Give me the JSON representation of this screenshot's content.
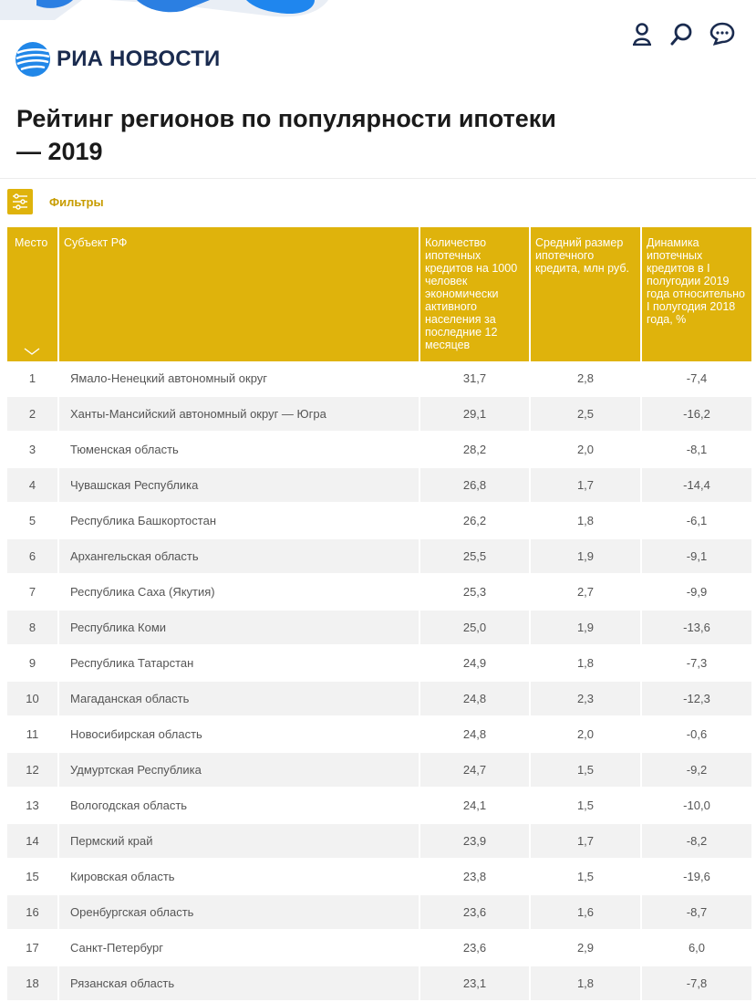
{
  "header": {
    "logo_text": "РИА НОВОСТИ",
    "icons": [
      "user-icon",
      "search-icon",
      "chat-icon"
    ],
    "brand_color": "#1a2b4f",
    "accent_color": "#2187e8"
  },
  "title": "Рейтинг регионов по популярности ипотеки — 2019",
  "filters": {
    "label": "Фильтры",
    "color": "#dfb30c"
  },
  "table": {
    "columns": [
      "Место",
      "Субъект РФ",
      "Количество ипотечных кредитов на 1000 человек экономически активного населения за последние 12 месяцев",
      "Средний размер ипотечного кредита, млн руб.",
      "Динамика ипотечных кредитов в I полугодии 2019 года относительно I полугодия 2018 года, %"
    ],
    "header_color": "#dfb30c",
    "rows": [
      [
        "1",
        "Ямало-Ненецкий автономный округ",
        "31,7",
        "2,8",
        "-7,4"
      ],
      [
        "2",
        "Ханты-Мансийский автономный округ — Югра",
        "29,1",
        "2,5",
        "-16,2"
      ],
      [
        "3",
        "Тюменская область",
        "28,2",
        "2,0",
        "-8,1"
      ],
      [
        "4",
        "Чувашская Республика",
        "26,8",
        "1,7",
        "-14,4"
      ],
      [
        "5",
        "Республика Башкортостан",
        "26,2",
        "1,8",
        "-6,1"
      ],
      [
        "6",
        "Архангельская область",
        "25,5",
        "1,9",
        "-9,1"
      ],
      [
        "7",
        "Республика Саха (Якутия)",
        "25,3",
        "2,7",
        "-9,9"
      ],
      [
        "8",
        "Республика Коми",
        "25,0",
        "1,9",
        "-13,6"
      ],
      [
        "9",
        "Республика Татарстан",
        "24,9",
        "1,8",
        "-7,3"
      ],
      [
        "10",
        "Магаданская область",
        "24,8",
        "2,3",
        "-12,3"
      ],
      [
        "11",
        "Новосибирская область",
        "24,8",
        "2,0",
        "-0,6"
      ],
      [
        "12",
        "Удмуртская Республика",
        "24,7",
        "1,5",
        "-9,2"
      ],
      [
        "13",
        "Вологодская область",
        "24,1",
        "1,5",
        "-10,0"
      ],
      [
        "14",
        "Пермский край",
        "23,9",
        "1,7",
        "-8,2"
      ],
      [
        "15",
        "Кировская область",
        "23,8",
        "1,5",
        "-19,6"
      ],
      [
        "16",
        "Оренбургская область",
        "23,6",
        "1,6",
        "-8,7"
      ],
      [
        "17",
        "Санкт-Петербург",
        "23,6",
        "2,9",
        "6,0"
      ],
      [
        "18",
        "Рязанская область",
        "23,1",
        "1,8",
        "-7,8"
      ]
    ]
  }
}
